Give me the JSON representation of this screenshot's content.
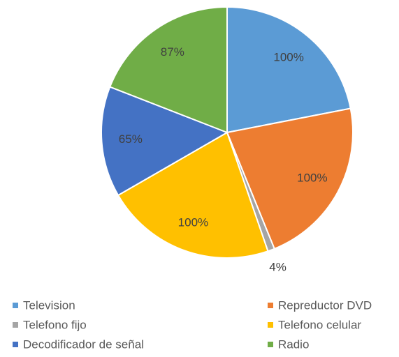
{
  "chart_data": {
    "type": "pie",
    "categories": [
      "Television",
      "Repreductor DVD",
      "Telefono fijo",
      "Telefono celular",
      "Decodificador de señal",
      "Radio"
    ],
    "values": [
      100,
      100,
      4,
      100,
      65,
      87
    ],
    "value_labels": [
      "100%",
      "100%",
      "4%",
      "100%",
      "65%",
      "87%"
    ],
    "colors": [
      "#5b9bd5",
      "#ed7d31",
      "#a5a5a5",
      "#ffc000",
      "#4472c4",
      "#70ad47"
    ],
    "legend": "bottom"
  }
}
